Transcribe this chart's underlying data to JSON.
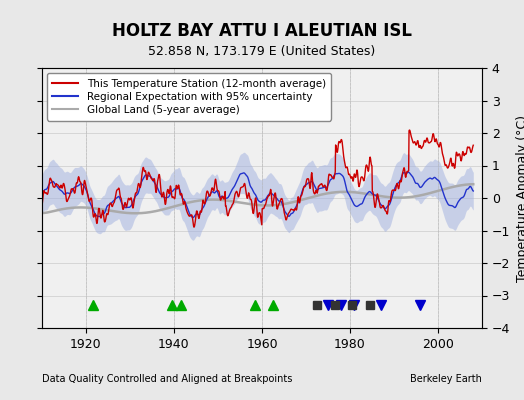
{
  "title": "HOLTZ BAY ATTU I ALEUTIAN ISL",
  "subtitle": "52.858 N, 173.179 E (United States)",
  "xlabel_bottom": "Data Quality Controlled and Aligned at Breakpoints",
  "xlabel_right": "Berkeley Earth",
  "ylabel": "Temperature Anomaly (°C)",
  "xlim": [
    1910,
    2010
  ],
  "ylim": [
    -4,
    4
  ],
  "yticks": [
    -4,
    -3,
    -2,
    -1,
    0,
    1,
    2,
    3,
    4
  ],
  "xticks": [
    1920,
    1940,
    1960,
    1980,
    2000
  ],
  "bg_color": "#e8e8e8",
  "plot_bg_color": "#f0f0f0",
  "legend_entries": [
    "This Temperature Station (12-month average)",
    "Regional Expectation with 95% uncertainty",
    "Global Land (5-year average)"
  ],
  "station_moves": [],
  "record_gaps": [
    1921.5,
    1939.5,
    1941.5,
    1958.5,
    1962.5
  ],
  "time_obs_changes": [
    1975.0,
    1978.0,
    1981.0,
    1987.0,
    1996.0
  ],
  "empirical_breaks": [
    1972.5,
    1976.5,
    1980.5,
    1984.5
  ],
  "marker_y": -3.3
}
